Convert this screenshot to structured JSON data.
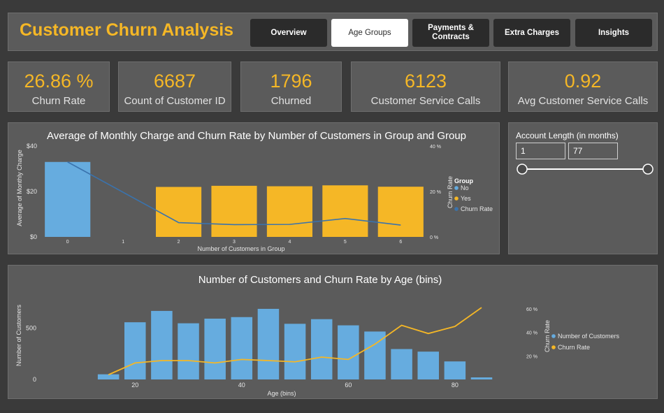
{
  "header": {
    "title": "Customer Churn Analysis",
    "nav": [
      {
        "label": "Overview",
        "active": false
      },
      {
        "label": "Age Groups",
        "active": true
      },
      {
        "label": "Payments & Contracts",
        "active": false
      },
      {
        "label": "Extra Charges",
        "active": false
      },
      {
        "label": "Insights",
        "active": false
      }
    ]
  },
  "kpis": [
    {
      "value": "26.86 %",
      "label": "Churn Rate"
    },
    {
      "value": "6687",
      "label": "Count of Customer ID"
    },
    {
      "value": "1796",
      "label": "Churned"
    },
    {
      "value": "6123",
      "label": "Customer Service Calls"
    },
    {
      "value": "0.92",
      "label": "Avg Customer Service Calls"
    }
  ],
  "filter": {
    "label": "Account Length (in months)",
    "min": "1",
    "max": "77",
    "slider_min_fraction": 0.0,
    "slider_max_fraction": 1.0
  },
  "colors": {
    "accent": "#f5b726",
    "blue": "#66acdf",
    "line_blue": "#3a73ad",
    "panel": "#5b5b5b",
    "background": "#3a3a3a"
  },
  "chart_data": [
    {
      "type": "bar",
      "title": "Average of Monthly Charge and Churn Rate by Number of Customers in Group and Group",
      "xlabel": "Number of Customers in Group",
      "ylabel": "Average of Monthly Charge",
      "y2label": "Churn Rate",
      "categories": [
        "0",
        "1",
        "2",
        "3",
        "4",
        "5",
        "6"
      ],
      "ylim": [
        0,
        40
      ],
      "yticks": [
        "$0",
        "$20",
        "$40"
      ],
      "y2lim": [
        0,
        40
      ],
      "y2ticks": [
        "0 %",
        "20 %",
        "40 %"
      ],
      "legend_title": "Group",
      "series": [
        {
          "name": "No",
          "values": [
            33,
            null,
            null,
            null,
            null,
            null,
            null
          ]
        },
        {
          "name": "Yes",
          "values": [
            null,
            null,
            22,
            22.5,
            22.3,
            22.7,
            22.1
          ]
        },
        {
          "name": "Churn Rate",
          "values": [
            33,
            null,
            6.3,
            5.4,
            5.5,
            8.1,
            5.2
          ]
        }
      ]
    },
    {
      "type": "bar",
      "title": "Number of Customers and Churn Rate by Age (bins)",
      "xlabel": "Age (bins)",
      "ylabel": "Number of Customers",
      "y2label": "Churn Rate",
      "x": [
        15,
        20,
        25,
        30,
        35,
        40,
        45,
        50,
        55,
        60,
        65,
        70,
        75,
        80,
        85
      ],
      "xticks": [
        "20",
        "40",
        "60",
        "80"
      ],
      "ylim": [
        0,
        800
      ],
      "yticks": [
        "0",
        "500"
      ],
      "y2lim": [
        0,
        70
      ],
      "y2ticks": [
        "20 %",
        "40 %",
        "60 %"
      ],
      "series": [
        {
          "name": "Number of Customers",
          "values": [
            50,
            555,
            665,
            545,
            590,
            605,
            685,
            540,
            585,
            525,
            465,
            295,
            270,
            175,
            20
          ]
        },
        {
          "name": "Churn Rate",
          "values": [
            4,
            14,
            16,
            16,
            14,
            17,
            16,
            15,
            19,
            17,
            30,
            46,
            39,
            45,
            61
          ]
        }
      ]
    }
  ]
}
